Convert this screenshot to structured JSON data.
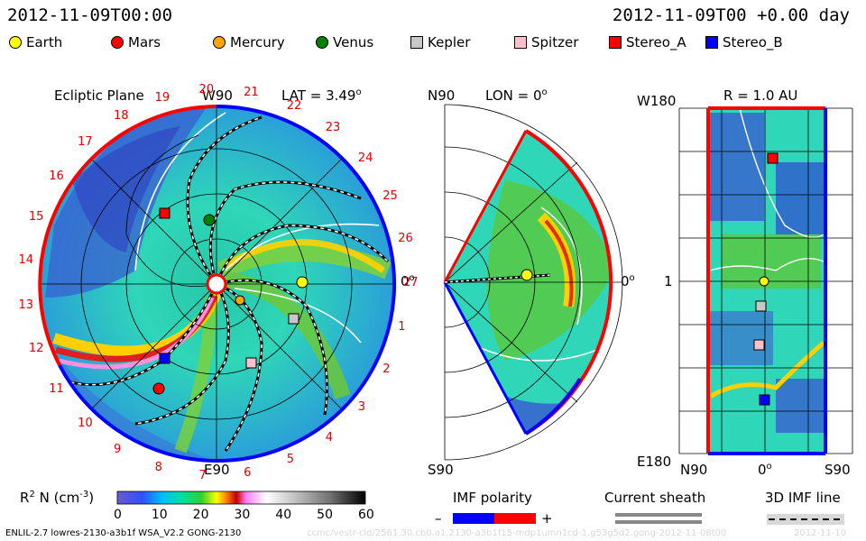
{
  "header": {
    "left_time": "2012-11-09T00:00",
    "right_time": "2012-11-09T00 +0.00 day"
  },
  "legend": [
    {
      "name": "Earth",
      "shape": "circle",
      "color": "#ffff00"
    },
    {
      "name": "Mars",
      "shape": "circle",
      "color": "#ff0000"
    },
    {
      "name": "Mercury",
      "shape": "circle",
      "color": "#ffa500"
    },
    {
      "name": "Venus",
      "shape": "circle",
      "color": "#008000"
    },
    {
      "name": "Kepler",
      "shape": "square",
      "color": "#c8c8c8"
    },
    {
      "name": "Spitzer",
      "shape": "square",
      "color": "#ffc0cb"
    },
    {
      "name": "Stereo_A",
      "shape": "square",
      "color": "#ff0000"
    },
    {
      "name": "Stereo_B",
      "shape": "square",
      "color": "#0000ff"
    }
  ],
  "ecliptic": {
    "title": "Ecliptic Plane",
    "top_label": "W90",
    "bottom_label": "E90",
    "right_label": "0",
    "lat_label": "LAT = 3.49",
    "lat_degree": "o",
    "carrington_numbers": [
      "1",
      "2",
      "3",
      "4",
      "5",
      "6",
      "7",
      "8",
      "9",
      "10",
      "11",
      "12",
      "13",
      "14",
      "15",
      "16",
      "17",
      "18",
      "19",
      "20",
      "21",
      "22",
      "23",
      "24",
      "25",
      "26",
      "27"
    ]
  },
  "meridional": {
    "top_label": "N90",
    "bottom_label": "S90",
    "lon_label": "LON = 0",
    "lon_degree": "o",
    "right_label": "0",
    "right_degree": "o"
  },
  "radial": {
    "title": "R = 1.0 AU",
    "top_left": "W180",
    "middle_left": "1",
    "bottom_left": "E180",
    "bottom_x_left": "N90",
    "bottom_x_mid": "0",
    "bottom_x_right": "S90"
  },
  "colorbar": {
    "label": "R",
    "label_sup": "2",
    "label_rest": " N (cm",
    "label_exp": "-3",
    "label_end": ")",
    "ticks": [
      "0",
      "10",
      "20",
      "30",
      "40",
      "50",
      "60"
    ]
  },
  "imf_polarity": {
    "label": "IMF polarity",
    "minus": "–",
    "plus": "+"
  },
  "current_sheath": {
    "label": "Current sheath"
  },
  "imf_line": {
    "label": "3D IMF line"
  },
  "footer": {
    "left": "ENLIL-2.7 lowres-2130-a3b1f WSA_V2.2 GONG-2130",
    "watermark": "ccmc/vestr-cld/2561.30.cb0.a1.2130-a3b1f15-mdp1umn1cd-1.g53g5d2.gong-2012-11-08t00",
    "right": "2012-11-10"
  }
}
